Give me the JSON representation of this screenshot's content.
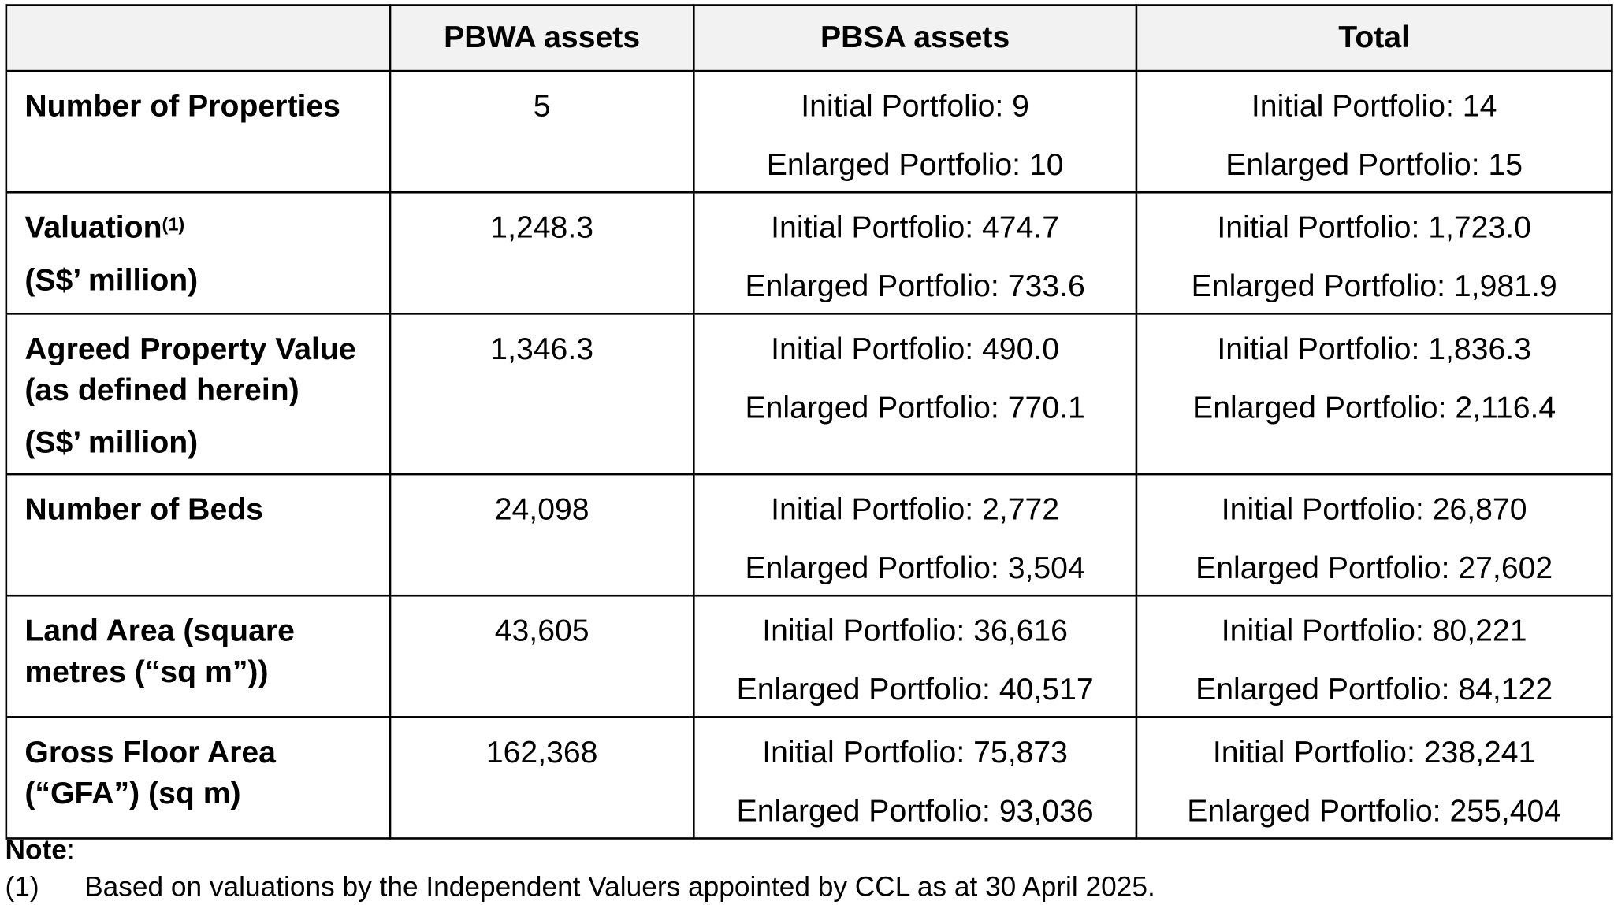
{
  "table": {
    "header": {
      "blank": "",
      "col1": "PBWA assets",
      "col2": "PBSA assets",
      "col3": "Total"
    },
    "rows": [
      {
        "label": [
          "Number of Properties"
        ],
        "pbwa": "5",
        "pbsa": [
          "Initial Portfolio: 9",
          "Enlarged Portfolio: 10"
        ],
        "total": [
          "Initial Portfolio: 14",
          "Enlarged Portfolio: 15"
        ]
      },
      {
        "label": [
          "Valuation",
          "(S$’ million)"
        ],
        "label_sup": "(1)",
        "pbwa": "1,248.3",
        "pbsa": [
          "Initial Portfolio: 474.7",
          "Enlarged Portfolio: 733.6"
        ],
        "total": [
          "Initial Portfolio: 1,723.0",
          "Enlarged Portfolio: 1,981.9"
        ]
      },
      {
        "label": [
          "Agreed Property Value",
          "(as defined herein)",
          "(S$’ million)"
        ],
        "pbwa": "1,346.3",
        "pbsa": [
          "Initial Portfolio: 490.0",
          "Enlarged Portfolio: 770.1"
        ],
        "total": [
          "Initial Portfolio: 1,836.3",
          "Enlarged Portfolio: 2,116.4"
        ]
      },
      {
        "label": [
          "Number of Beds"
        ],
        "pbwa": "24,098",
        "pbsa": [
          "Initial Portfolio: 2,772",
          "Enlarged Portfolio: 3,504"
        ],
        "total": [
          "Initial Portfolio: 26,870",
          "Enlarged Portfolio: 27,602"
        ]
      },
      {
        "label": [
          "Land Area (square",
          "metres (“sq m”))"
        ],
        "pbwa": "43,605",
        "pbsa": [
          "Initial Portfolio: 36,616",
          "Enlarged Portfolio: 40,517"
        ],
        "total": [
          "Initial Portfolio: 80,221",
          "Enlarged Portfolio: 84,122"
        ]
      },
      {
        "label": [
          "Gross Floor Area",
          "(“GFA”) (sq m)"
        ],
        "pbwa": "162,368",
        "pbsa": [
          "Initial Portfolio: 75,873",
          "Enlarged Portfolio: 93,036"
        ],
        "total": [
          "Initial Portfolio: 238,241",
          "Enlarged Portfolio: 255,404"
        ]
      }
    ]
  },
  "note": {
    "title": "Note",
    "colon": ":",
    "items": [
      {
        "marker": "(1)",
        "text": "Based on valuations by the Independent Valuers appointed by CCL as at 30 April 2025."
      }
    ]
  }
}
